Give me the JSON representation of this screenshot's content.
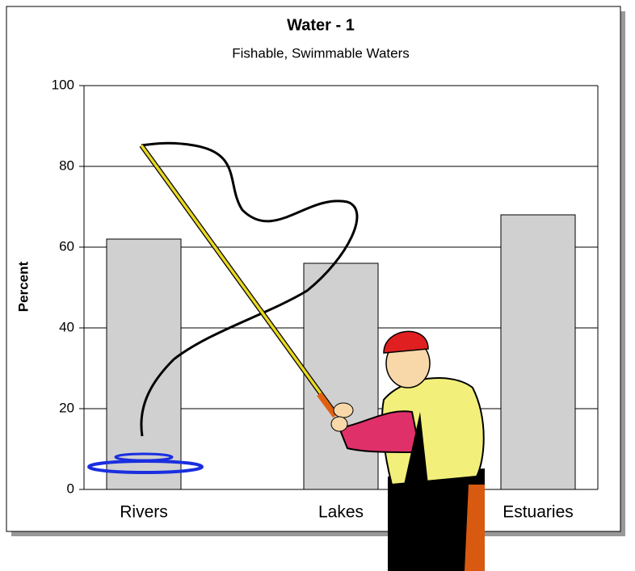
{
  "chart_data": {
    "type": "bar",
    "title": "Water - 1",
    "subtitle": "Fishable, Swimmable Waters",
    "y_label": "Percent",
    "categories": [
      "Rivers",
      "Lakes",
      "Estuaries"
    ],
    "values": [
      62,
      56,
      68
    ],
    "color": "#d0d0d0",
    "ylim": [
      0,
      100
    ],
    "yticks": [
      0,
      20,
      40,
      60,
      80,
      100
    ],
    "grid": true
  }
}
